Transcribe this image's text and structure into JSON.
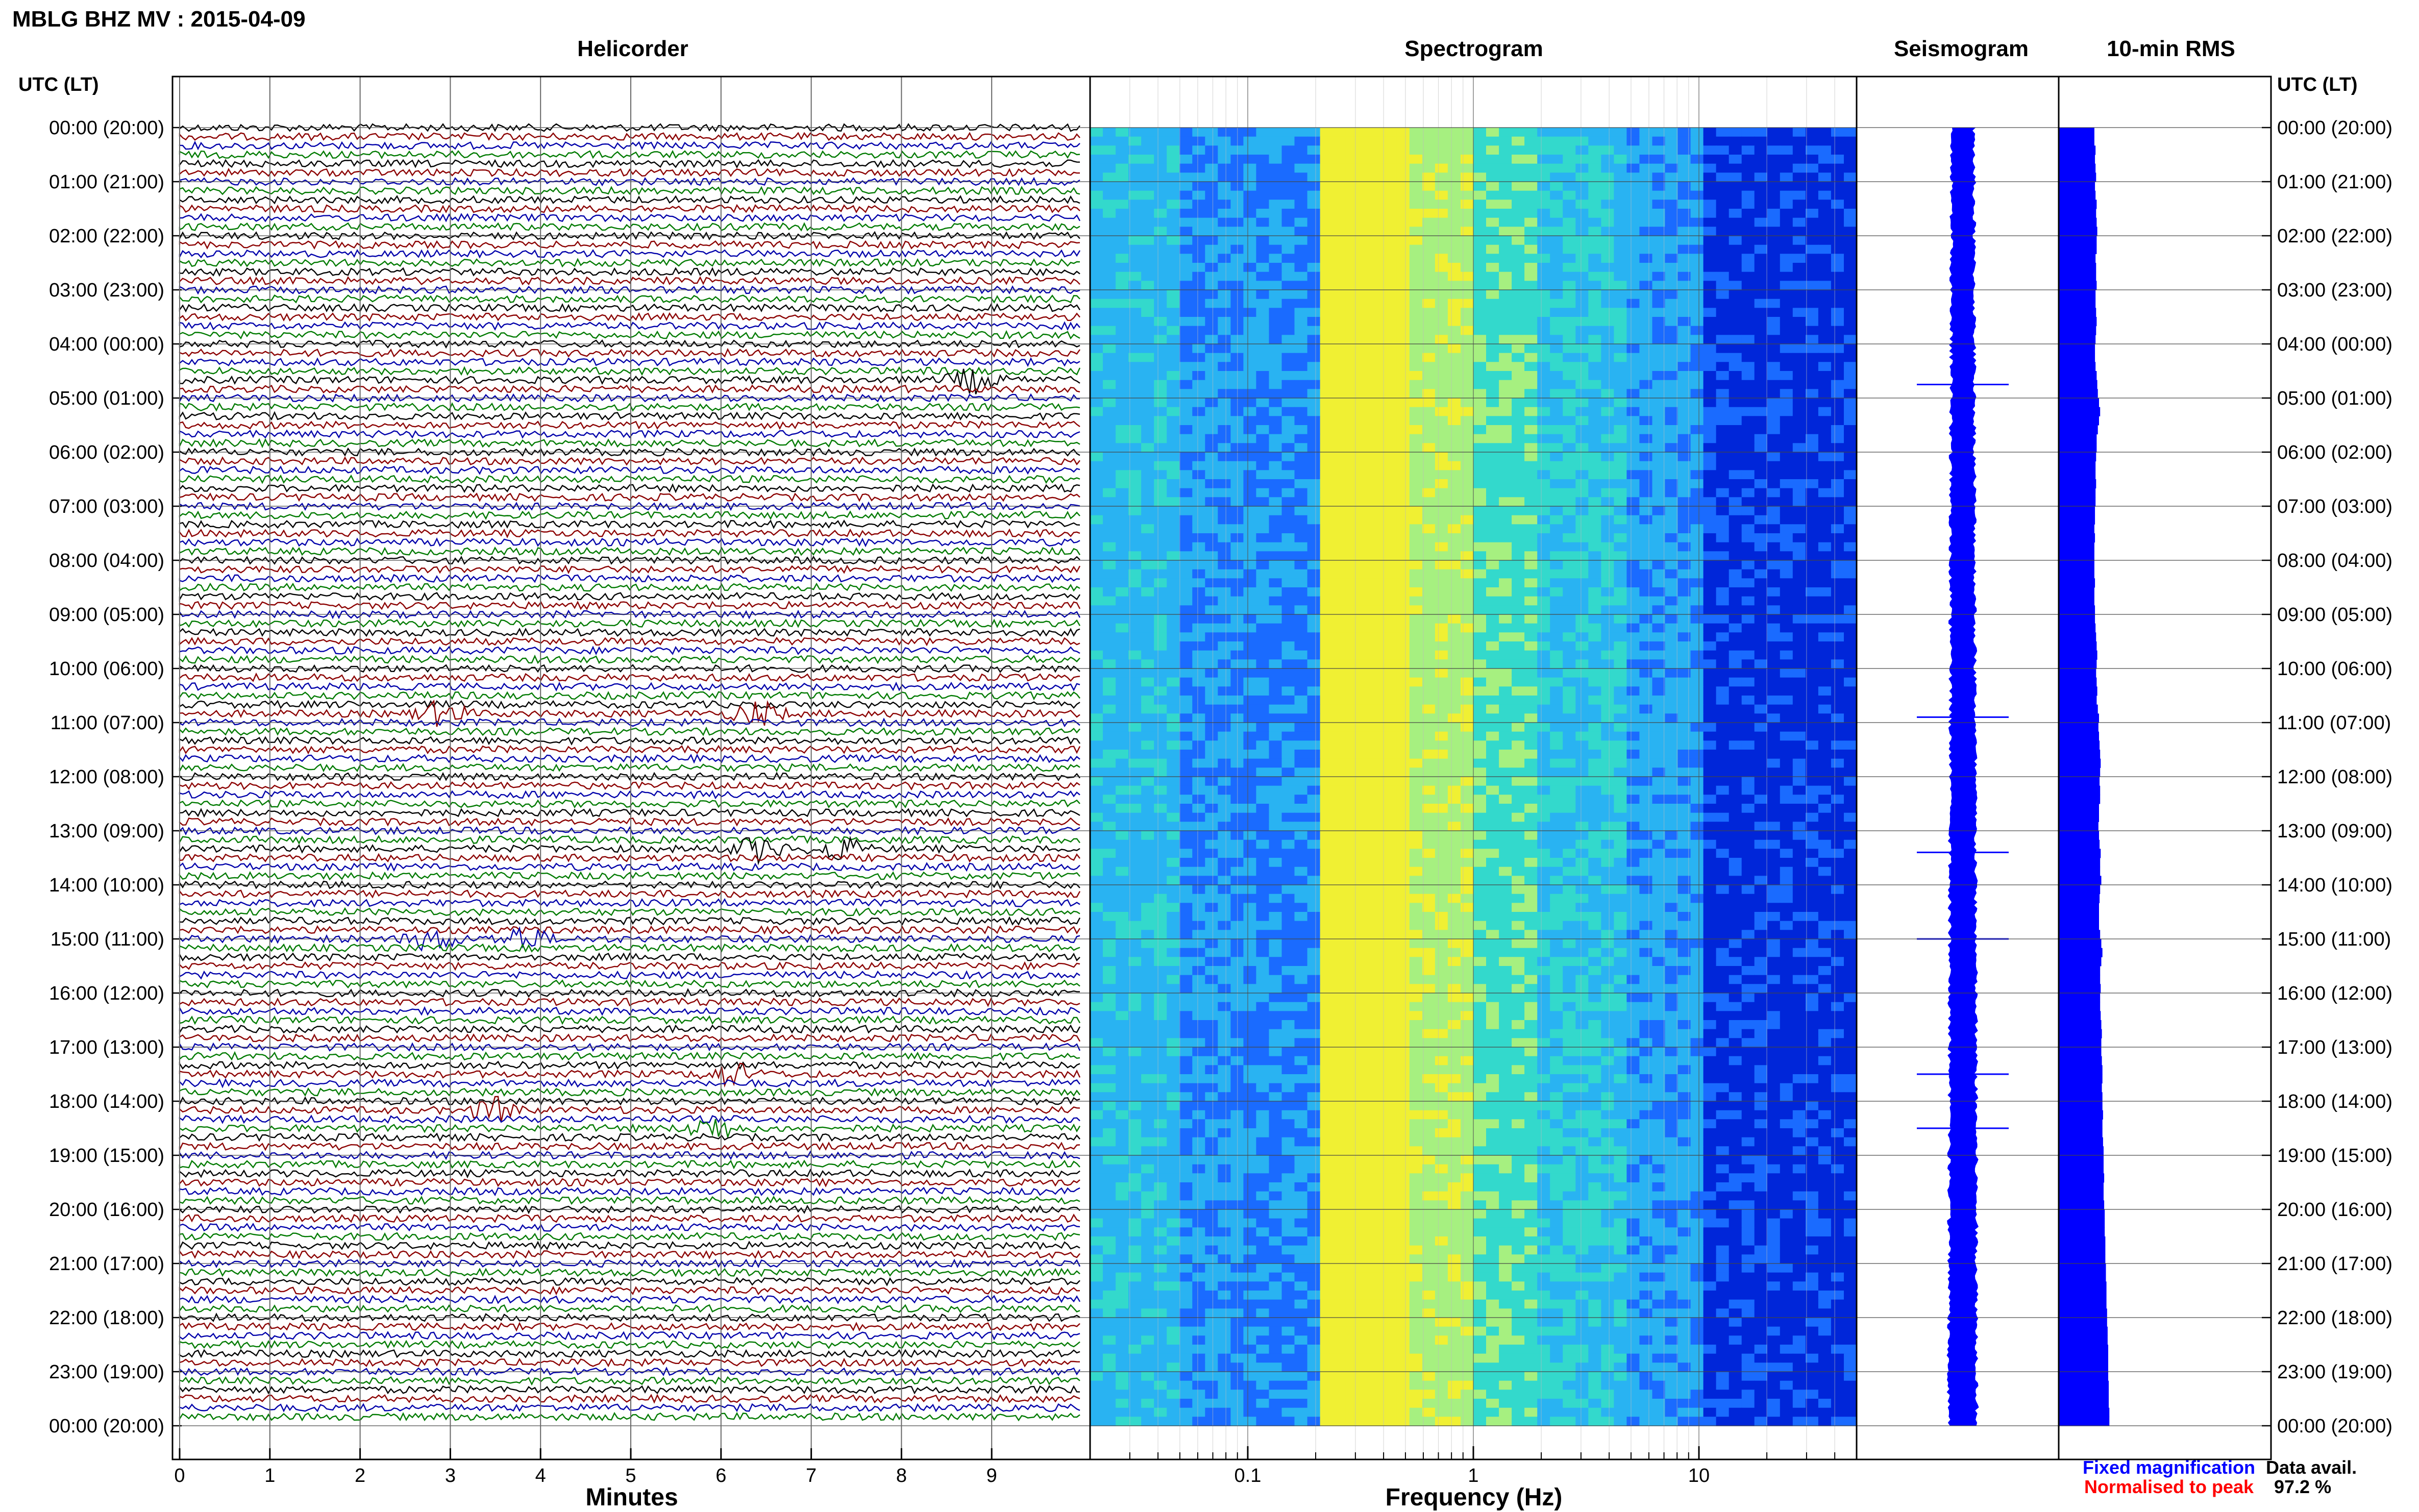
{
  "page_title": "MBLG BHZ MV : 2015-04-09",
  "panels": {
    "helicorder": "Helicorder",
    "spectrogram": "Spectrogram",
    "seismogram": "Seismogram",
    "rms": "10-min RMS"
  },
  "time_axis_header": "UTC (LT)",
  "time_labels": [
    "00:00 (20:00)",
    "01:00 (21:00)",
    "02:00 (22:00)",
    "03:00 (23:00)",
    "04:00 (00:00)",
    "05:00 (01:00)",
    "06:00 (02:00)",
    "07:00 (03:00)",
    "08:00 (04:00)",
    "09:00 (05:00)",
    "10:00 (06:00)",
    "11:00 (07:00)",
    "12:00 (08:00)",
    "13:00 (09:00)",
    "14:00 (10:00)",
    "15:00 (11:00)",
    "16:00 (12:00)",
    "17:00 (13:00)",
    "18:00 (14:00)",
    "19:00 (15:00)",
    "20:00 (16:00)",
    "21:00 (17:00)",
    "22:00 (18:00)",
    "23:00 (19:00)",
    "00:00 (20:00)"
  ],
  "xaxis_helicorder": {
    "label": "Minutes",
    "ticks": [
      "0",
      "1",
      "2",
      "3",
      "4",
      "5",
      "6",
      "7",
      "8",
      "9"
    ]
  },
  "xaxis_spectrogram": {
    "label": "Frequency (Hz)",
    "ticks": [
      "0.1",
      "1",
      "10"
    ],
    "scale": "log"
  },
  "legend": {
    "fixed": "Fixed magnification",
    "normalised": "Normalised to peak",
    "fixed_color": "#0000ff",
    "normalised_color": "#ff0000"
  },
  "data_avail": {
    "label": "Data avail.",
    "value": "97.2 %"
  },
  "colors": {
    "trace_cycle": [
      "#000000",
      "#8b0000",
      "#0000aa",
      "#007a00"
    ],
    "fill_blue": "#0000ff"
  },
  "chart_data": {
    "type": "heatmap",
    "helicorder": {
      "minutes_per_line": 10,
      "lines": 144,
      "events": [
        {
          "hour": 4.67,
          "minute": 8.8,
          "color_index": 0
        },
        {
          "hour": 10.83,
          "minute": 2.9,
          "color_index": 0
        },
        {
          "hour": 10.83,
          "minute": 6.4,
          "color_index": 0
        },
        {
          "hour": 13.33,
          "minute": 6.4,
          "color_index": 0
        },
        {
          "hour": 13.33,
          "minute": 7.3,
          "color_index": 0
        },
        {
          "hour": 15.0,
          "minute": 2.8,
          "color_index": 2
        },
        {
          "hour": 15.0,
          "minute": 3.8,
          "color_index": 2
        },
        {
          "hour": 17.5,
          "minute": 6.1,
          "color_index": 1
        },
        {
          "hour": 18.17,
          "minute": 3.5,
          "color_index": 1
        },
        {
          "hour": 18.5,
          "minute": 5.9,
          "color_index": 3
        }
      ]
    },
    "spectrogram": {
      "freq_range_hz": [
        0.02,
        50
      ],
      "peak_band_hz": [
        0.2,
        0.5
      ],
      "colormap": [
        "#0026d9",
        "#1a6bff",
        "#29b3f2",
        "#33d9cc",
        "#a6f080",
        "#f0f033"
      ]
    },
    "rms_10min_relative": [
      0.62,
      0.62,
      0.64,
      0.63,
      0.64,
      0.65,
      0.63,
      0.64,
      0.66,
      0.65,
      0.66,
      0.67,
      0.66,
      0.66,
      0.64,
      0.65,
      0.65,
      0.66,
      0.64,
      0.64,
      0.65,
      0.66,
      0.65,
      0.64,
      0.63,
      0.63,
      0.64,
      0.66,
      0.67,
      0.68,
      0.7,
      0.72,
      0.7,
      0.68,
      0.66,
      0.66,
      0.65,
      0.64,
      0.64,
      0.65,
      0.64,
      0.64,
      0.63,
      0.63,
      0.62,
      0.63,
      0.62,
      0.62,
      0.62,
      0.62,
      0.63,
      0.62,
      0.62,
      0.63,
      0.63,
      0.64,
      0.65,
      0.66,
      0.67,
      0.66,
      0.65,
      0.66,
      0.67,
      0.66,
      0.68,
      0.7,
      0.69,
      0.7,
      0.71,
      0.72,
      0.73,
      0.72,
      0.71,
      0.72,
      0.72,
      0.7,
      0.7,
      0.69,
      0.7,
      0.71,
      0.73,
      0.72,
      0.72,
      0.74,
      0.72,
      0.71,
      0.7,
      0.7,
      0.7,
      0.72,
      0.74,
      0.76,
      0.74,
      0.72,
      0.72,
      0.73,
      0.72,
      0.72,
      0.73,
      0.74,
      0.75,
      0.74,
      0.74,
      0.75,
      0.76,
      0.76,
      0.75,
      0.76,
      0.76,
      0.77,
      0.76,
      0.76,
      0.77,
      0.78,
      0.78,
      0.78,
      0.79,
      0.78,
      0.78,
      0.79,
      0.8,
      0.8,
      0.8,
      0.81,
      0.81,
      0.81,
      0.82,
      0.82,
      0.83,
      0.83,
      0.83,
      0.84,
      0.84,
      0.85,
      0.85,
      0.86,
      0.86,
      0.86,
      0.86,
      0.87,
      0.87,
      0.87,
      0.88,
      0.88
    ]
  }
}
